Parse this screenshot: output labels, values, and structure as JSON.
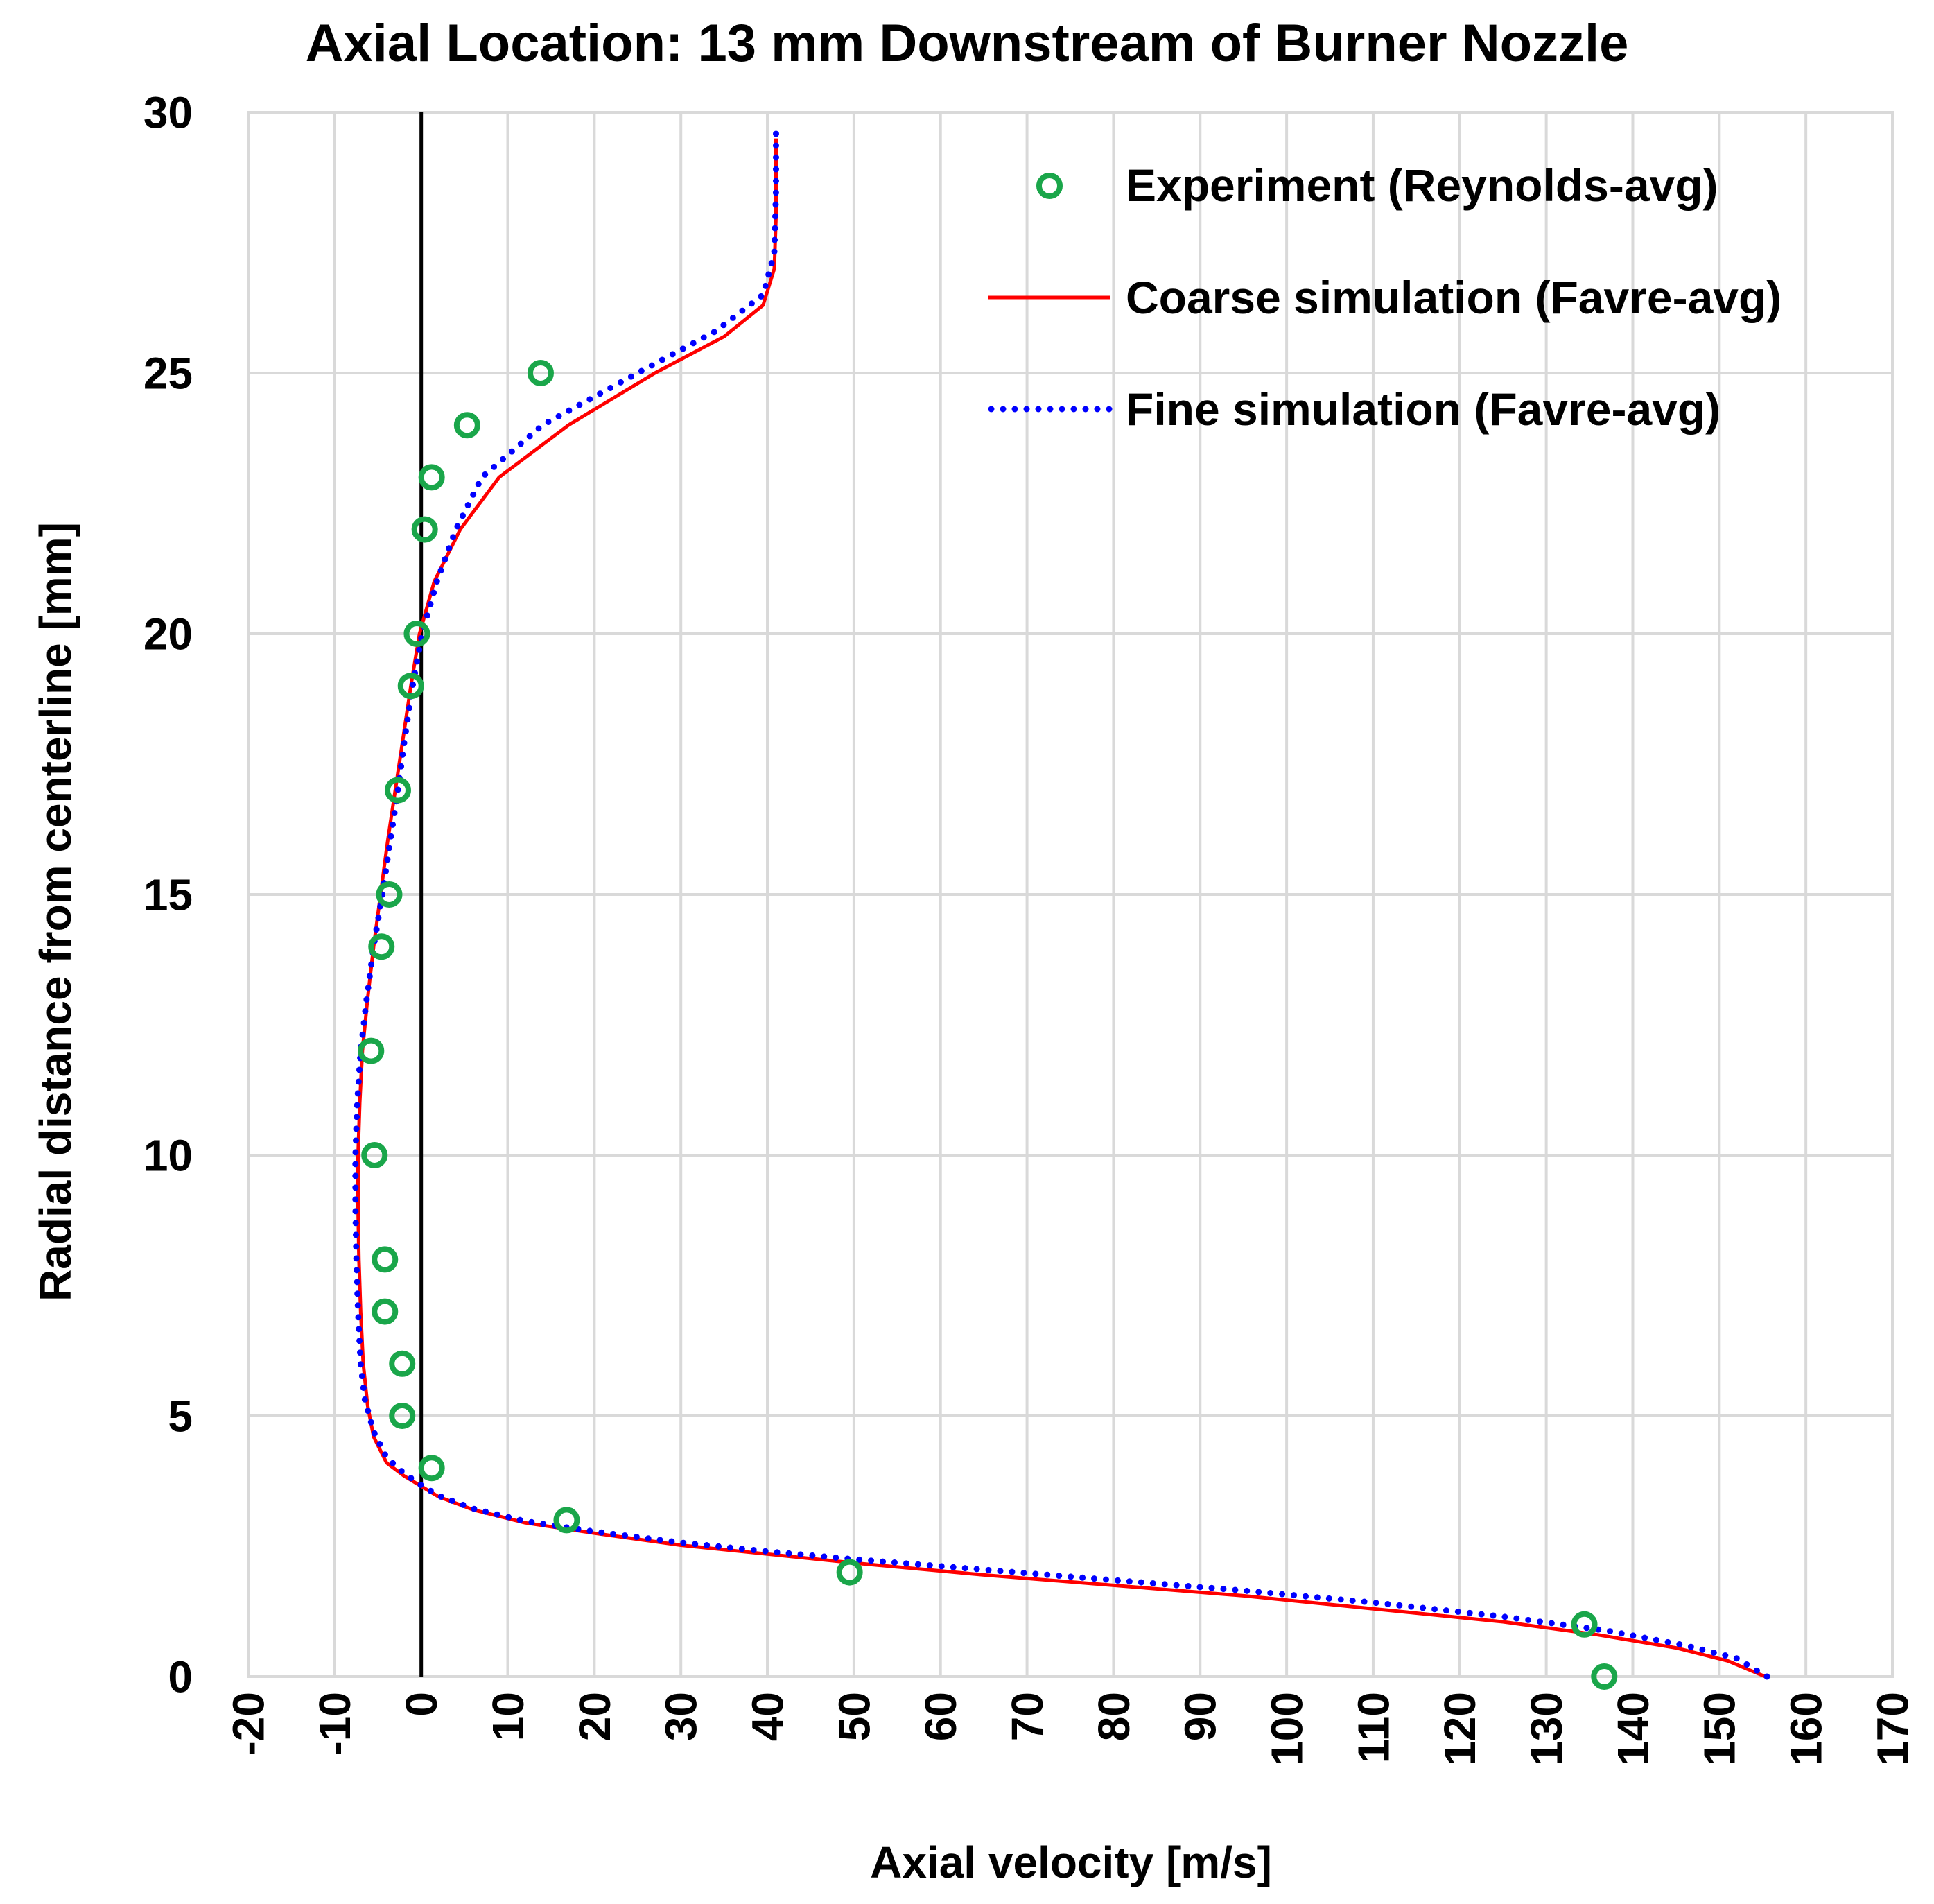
{
  "chart_data": {
    "type": "scatter",
    "title": "Axial Location: 13 mm Downstream of Burner Nozzle",
    "xlabel": "Axial velocity [m/s]",
    "ylabel": "Radial distance from centerline [mm]",
    "xlim": [
      -20,
      170
    ],
    "ylim": [
      0,
      30
    ],
    "xticks": [
      -20,
      -10,
      0,
      10,
      20,
      30,
      40,
      50,
      60,
      70,
      80,
      90,
      100,
      110,
      120,
      130,
      140,
      150,
      160,
      170
    ],
    "xtick_labels": [
      "-20",
      "-10",
      "0",
      "10",
      "20",
      "30",
      "40",
      "50",
      "60",
      "70",
      "80",
      "90",
      "100",
      "110",
      "120",
      "130",
      "140",
      "150",
      "160",
      "170"
    ],
    "yticks": [
      0,
      5,
      10,
      15,
      20,
      25,
      30
    ],
    "ytick_labels": [
      "0",
      "5",
      "10",
      "15",
      "20",
      "25",
      "30"
    ],
    "grid": true,
    "legend_position": "top-right",
    "series": [
      {
        "name": "Experiment (Reynolds-avg)",
        "kind": "markers",
        "color": "#1aa64a",
        "points": [
          [
            136.7,
            0
          ],
          [
            134.4,
            1
          ],
          [
            49.5,
            2
          ],
          [
            16.8,
            3
          ],
          [
            1.2,
            4
          ],
          [
            -2.2,
            5
          ],
          [
            -2.2,
            6
          ],
          [
            -4.2,
            7
          ],
          [
            -4.2,
            8
          ],
          [
            -5.4,
            10
          ],
          [
            -5.8,
            12
          ],
          [
            -4.6,
            14
          ],
          [
            -3.7,
            15
          ],
          [
            -2.7,
            17
          ],
          [
            -1.2,
            19
          ],
          [
            -0.5,
            20
          ],
          [
            0.4,
            22
          ],
          [
            1.2,
            23
          ],
          [
            5.3,
            24
          ],
          [
            13.8,
            25
          ]
        ]
      },
      {
        "name": "Coarse simulation (Favre-avg)",
        "kind": "line",
        "color": "#ff0000",
        "points": [
          [
            155.3,
            0
          ],
          [
            151,
            0.3
          ],
          [
            145,
            0.55
          ],
          [
            136,
            0.8
          ],
          [
            125,
            1.05
          ],
          [
            110,
            1.3
          ],
          [
            95,
            1.55
          ],
          [
            80,
            1.75
          ],
          [
            65,
            1.95
          ],
          [
            50,
            2.18
          ],
          [
            40,
            2.35
          ],
          [
            30,
            2.52
          ],
          [
            20,
            2.75
          ],
          [
            12,
            2.95
          ],
          [
            6,
            3.2
          ],
          [
            2,
            3.45
          ],
          [
            0,
            3.65
          ],
          [
            -2,
            3.85
          ],
          [
            -4,
            4.1
          ],
          [
            -5.5,
            4.6
          ],
          [
            -6.2,
            5.2
          ],
          [
            -6.7,
            6
          ],
          [
            -7,
            7
          ],
          [
            -7.2,
            8
          ],
          [
            -7.3,
            9
          ],
          [
            -7.3,
            10
          ],
          [
            -7.1,
            11
          ],
          [
            -6.8,
            12
          ],
          [
            -6.2,
            13
          ],
          [
            -5.5,
            14
          ],
          [
            -4.7,
            15
          ],
          [
            -3.9,
            16
          ],
          [
            -3,
            17
          ],
          [
            -2.1,
            18
          ],
          [
            -1.2,
            19
          ],
          [
            -0.2,
            20
          ],
          [
            1.5,
            21
          ],
          [
            4.5,
            22
          ],
          [
            9,
            23
          ],
          [
            17,
            24
          ],
          [
            27,
            25
          ],
          [
            35,
            25.7
          ],
          [
            39.5,
            26.3
          ],
          [
            40.8,
            27
          ],
          [
            41,
            28
          ],
          [
            41,
            29.5
          ]
        ]
      },
      {
        "name": "Fine simulation (Favre-avg)",
        "kind": "dotted-line",
        "color": "#0000ff",
        "points": [
          [
            155.5,
            0
          ],
          [
            152,
            0.35
          ],
          [
            146,
            0.6
          ],
          [
            137,
            0.88
          ],
          [
            125,
            1.15
          ],
          [
            110,
            1.42
          ],
          [
            95,
            1.65
          ],
          [
            80,
            1.85
          ],
          [
            65,
            2.05
          ],
          [
            50,
            2.25
          ],
          [
            40,
            2.4
          ],
          [
            30,
            2.57
          ],
          [
            20,
            2.78
          ],
          [
            12,
            2.98
          ],
          [
            6,
            3.22
          ],
          [
            2,
            3.47
          ],
          [
            0,
            3.67
          ],
          [
            -2,
            3.9
          ],
          [
            -4,
            4.2
          ],
          [
            -5.5,
            4.7
          ],
          [
            -6.5,
            5.3
          ],
          [
            -7,
            6
          ],
          [
            -7.3,
            7
          ],
          [
            -7.5,
            8
          ],
          [
            -7.6,
            9
          ],
          [
            -7.6,
            10
          ],
          [
            -7.4,
            11
          ],
          [
            -7,
            12
          ],
          [
            -6.3,
            13
          ],
          [
            -5.5,
            14
          ],
          [
            -4.5,
            15
          ],
          [
            -3.6,
            16
          ],
          [
            -2.7,
            17
          ],
          [
            -1.9,
            18
          ],
          [
            -1,
            19
          ],
          [
            0.1,
            20
          ],
          [
            1.8,
            21
          ],
          [
            4,
            22
          ],
          [
            7,
            23
          ],
          [
            14,
            24
          ],
          [
            25,
            25
          ],
          [
            34,
            25.8
          ],
          [
            39.5,
            26.5
          ],
          [
            40.8,
            27.3
          ],
          [
            41,
            28.5
          ],
          [
            41,
            29.6
          ]
        ]
      }
    ]
  }
}
